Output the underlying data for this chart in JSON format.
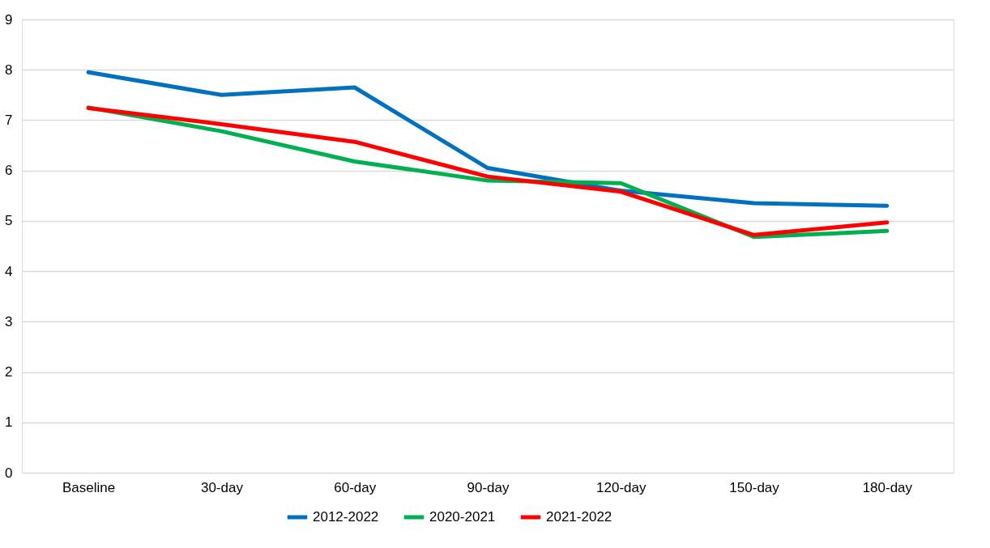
{
  "chart_data": {
    "type": "line",
    "categories": [
      "Baseline",
      "30-day",
      "60-day",
      "90-day",
      "120-day",
      "150-day",
      "180-day"
    ],
    "series": [
      {
        "name": "2012-2022",
        "color": "#0070c0",
        "values": [
          7.95,
          7.5,
          7.65,
          6.05,
          5.6,
          5.35,
          5.3
        ]
      },
      {
        "name": "2020-2021",
        "color": "#00b050",
        "values": [
          7.25,
          6.78,
          6.18,
          5.8,
          5.75,
          4.68,
          4.8
        ]
      },
      {
        "name": "2021-2022",
        "color": "#ff0000",
        "values": [
          7.24,
          6.92,
          6.57,
          5.88,
          5.58,
          4.72,
          4.97
        ]
      }
    ],
    "ylim": [
      0,
      9
    ],
    "yticks": [
      0,
      1,
      2,
      3,
      4,
      5,
      6,
      7,
      8,
      9
    ],
    "grid": "y",
    "legend": "bottom",
    "marker": "none",
    "line_style": "solid"
  }
}
